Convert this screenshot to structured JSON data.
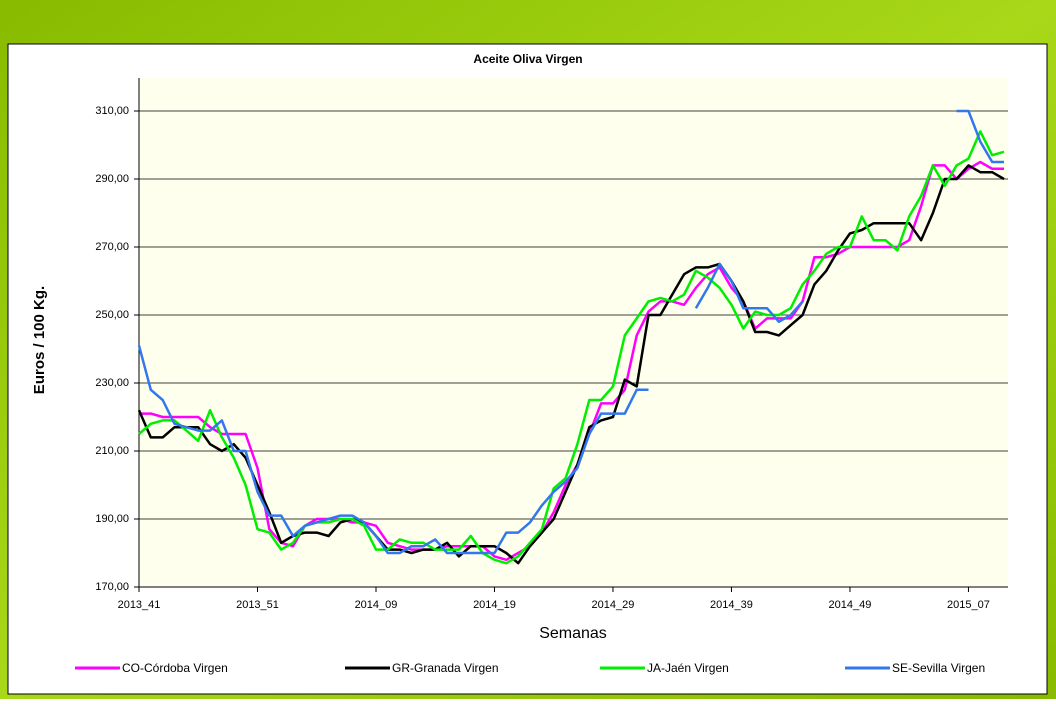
{
  "chart_data": {
    "type": "line",
    "title": "Aceite Oliva Virgen",
    "x_label": "Semanas",
    "y_label": "Euros / 100 Kg.",
    "categories": [
      "2013_41",
      null,
      null,
      null,
      null,
      null,
      null,
      null,
      null,
      null,
      "2013_51",
      null,
      null,
      null,
      null,
      null,
      null,
      null,
      null,
      null,
      "2014_09",
      null,
      null,
      null,
      null,
      null,
      null,
      null,
      null,
      null,
      "2014_19",
      null,
      null,
      null,
      null,
      null,
      null,
      null,
      null,
      null,
      "2014_29",
      null,
      null,
      null,
      null,
      null,
      null,
      null,
      null,
      null,
      "2014_39",
      null,
      null,
      null,
      null,
      null,
      null,
      null,
      null,
      null,
      "2014_49",
      null,
      null,
      null,
      null,
      null,
      null,
      null,
      null,
      null,
      "2015_07",
      null,
      null,
      null
    ],
    "ylim": [
      170,
      310
    ],
    "yticks": [
      {
        "value": 170,
        "label": "170,00"
      },
      {
        "value": 190,
        "label": "190,00"
      },
      {
        "value": 210,
        "label": "210,00"
      },
      {
        "value": 230,
        "label": "230,00"
      },
      {
        "value": 250,
        "label": "250,00"
      },
      {
        "value": 270,
        "label": "270,00"
      },
      {
        "value": 290,
        "label": "290,00"
      },
      {
        "value": 310,
        "label": "310,00"
      }
    ],
    "grid": true,
    "legend": "bottom",
    "series": [
      {
        "name": "CO-Córdoba Virgen",
        "color": "#ff00ff",
        "values": [
          221,
          221,
          220,
          220,
          220,
          220,
          217,
          215,
          215,
          215,
          205,
          187,
          183,
          182,
          188,
          190,
          190,
          190,
          189,
          189,
          188,
          183,
          182,
          181,
          181,
          181,
          182,
          182,
          182,
          182,
          179,
          178,
          180,
          182,
          186,
          192,
          200,
          206,
          215,
          224,
          224,
          228,
          244,
          251,
          254,
          254,
          253,
          258,
          262,
          264,
          258,
          254,
          246,
          249,
          249,
          249,
          254,
          267,
          267,
          268,
          270,
          270,
          270,
          270,
          270,
          272,
          282,
          294,
          294,
          290,
          293,
          295,
          293,
          293
        ]
      },
      {
        "name": "GR-Granada Virgen",
        "color": "#000000",
        "values": [
          222,
          214,
          214,
          217,
          217,
          217,
          212,
          210,
          212,
          208,
          200,
          192,
          183,
          185,
          186,
          186,
          185,
          189,
          190,
          189,
          185,
          181,
          181,
          180,
          181,
          181,
          183,
          179,
          182,
          182,
          182,
          180,
          177,
          182,
          186,
          190,
          198,
          206,
          217,
          219,
          220,
          231,
          229,
          250,
          250,
          256,
          262,
          264,
          264,
          265,
          260,
          254,
          245,
          245,
          244,
          247,
          250,
          259,
          263,
          269,
          274,
          275,
          277,
          277,
          277,
          277,
          272,
          280,
          290,
          290,
          294,
          292,
          292,
          290
        ]
      },
      {
        "name": "JA-Jaén Virgen",
        "color": "#00ee00",
        "values": [
          215,
          218,
          219,
          219,
          216,
          213,
          222,
          214,
          208,
          200,
          187,
          186,
          181,
          183,
          188,
          189,
          189,
          190,
          190,
          188,
          181,
          181,
          184,
          183,
          183,
          181,
          181,
          181,
          185,
          180,
          178,
          177,
          179,
          183,
          187,
          199,
          202,
          212,
          225,
          225,
          229,
          244,
          249,
          254,
          255,
          254,
          256,
          263,
          261,
          258,
          253,
          246,
          251,
          250,
          250,
          252,
          259,
          263,
          268,
          270,
          270,
          279,
          272,
          272,
          269,
          279,
          285,
          294,
          288,
          294,
          296,
          304,
          297,
          298
        ]
      },
      {
        "name": "SE-Sevilla Virgen",
        "color": "#3377ee",
        "values": [
          241,
          228,
          225,
          218,
          217,
          216,
          216,
          219,
          210,
          210,
          198,
          191,
          191,
          185,
          188,
          189,
          190,
          191,
          191,
          189,
          185,
          180,
          180,
          182,
          182,
          184,
          180,
          180,
          180,
          180,
          180,
          186,
          186,
          189,
          194,
          198,
          201,
          205,
          215,
          221,
          221,
          221,
          228,
          228,
          null,
          null,
          null,
          252,
          258,
          265,
          260,
          252,
          252,
          252,
          248,
          250,
          254,
          null,
          null,
          null,
          null,
          null,
          null,
          null,
          null,
          null,
          null,
          null,
          null,
          310,
          310,
          301,
          295,
          295
        ]
      }
    ]
  }
}
